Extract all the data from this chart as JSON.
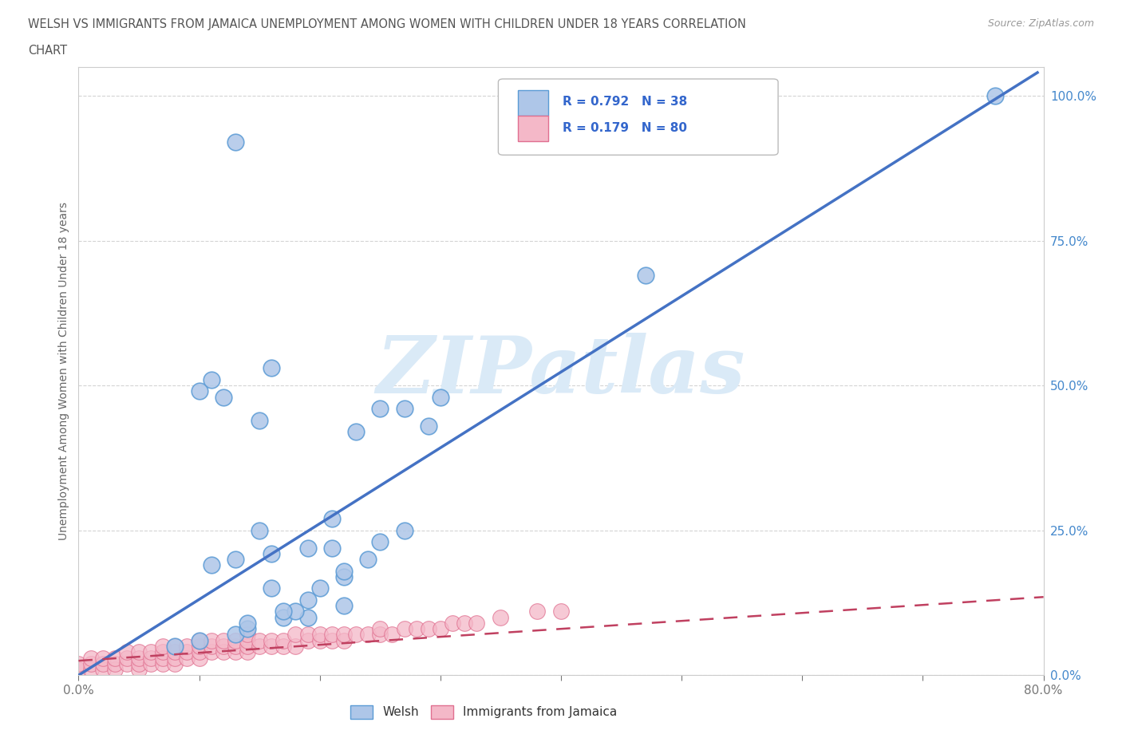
{
  "title_line1": "WELSH VS IMMIGRANTS FROM JAMAICA UNEMPLOYMENT AMONG WOMEN WITH CHILDREN UNDER 18 YEARS CORRELATION",
  "title_line2": "CHART",
  "source": "Source: ZipAtlas.com",
  "ylabel": "Unemployment Among Women with Children Under 18 years",
  "xlim": [
    0.0,
    0.8
  ],
  "ylim": [
    0.0,
    1.05
  ],
  "welsh_color": "#aec6e8",
  "welsh_edge_color": "#5b9bd5",
  "jamaica_color": "#f4b8c8",
  "jamaica_edge_color": "#e07090",
  "trendline_welsh_color": "#4472c4",
  "trendline_jamaica_color": "#c04060",
  "watermark": "ZIPatlas",
  "watermark_color": "#daeaf7",
  "grid_color": "#d0d0d0",
  "background_color": "#ffffff",
  "axis_color": "#cccccc",
  "tick_color": "#777777",
  "title_color": "#555555",
  "label_color": "#666666",
  "legend_text_color": "#3366cc",
  "welsh_x": [
    0.13,
    0.1,
    0.14,
    0.19,
    0.17,
    0.22,
    0.18,
    0.14,
    0.22,
    0.2,
    0.16,
    0.22,
    0.24,
    0.11,
    0.13,
    0.16,
    0.19,
    0.21,
    0.25,
    0.27,
    0.1,
    0.12,
    0.15,
    0.25,
    0.29,
    0.27,
    0.23,
    0.3,
    0.11,
    0.16,
    0.76,
    0.47,
    0.13,
    0.21,
    0.08,
    0.19,
    0.15,
    0.17
  ],
  "welsh_y": [
    0.07,
    0.06,
    0.08,
    0.1,
    0.1,
    0.12,
    0.11,
    0.09,
    0.17,
    0.15,
    0.15,
    0.18,
    0.2,
    0.19,
    0.2,
    0.21,
    0.22,
    0.22,
    0.23,
    0.25,
    0.49,
    0.48,
    0.44,
    0.46,
    0.43,
    0.46,
    0.42,
    0.48,
    0.51,
    0.53,
    1.0,
    0.69,
    0.92,
    0.27,
    0.05,
    0.13,
    0.25,
    0.11
  ],
  "jamaica_x": [
    0.0,
    0.0,
    0.01,
    0.01,
    0.01,
    0.02,
    0.02,
    0.02,
    0.03,
    0.03,
    0.03,
    0.04,
    0.04,
    0.04,
    0.05,
    0.05,
    0.05,
    0.05,
    0.06,
    0.06,
    0.06,
    0.07,
    0.07,
    0.07,
    0.07,
    0.08,
    0.08,
    0.08,
    0.08,
    0.09,
    0.09,
    0.09,
    0.1,
    0.1,
    0.1,
    0.1,
    0.11,
    0.11,
    0.11,
    0.12,
    0.12,
    0.12,
    0.13,
    0.13,
    0.13,
    0.14,
    0.14,
    0.14,
    0.14,
    0.15,
    0.15,
    0.16,
    0.16,
    0.17,
    0.17,
    0.18,
    0.18,
    0.19,
    0.19,
    0.2,
    0.2,
    0.21,
    0.21,
    0.22,
    0.22,
    0.23,
    0.24,
    0.25,
    0.25,
    0.26,
    0.27,
    0.28,
    0.29,
    0.3,
    0.31,
    0.32,
    0.33,
    0.35,
    0.38,
    0.4
  ],
  "jamaica_y": [
    0.01,
    0.02,
    0.01,
    0.02,
    0.03,
    0.01,
    0.02,
    0.03,
    0.01,
    0.02,
    0.03,
    0.02,
    0.03,
    0.04,
    0.01,
    0.02,
    0.03,
    0.04,
    0.02,
    0.03,
    0.04,
    0.02,
    0.03,
    0.04,
    0.05,
    0.02,
    0.03,
    0.04,
    0.05,
    0.03,
    0.04,
    0.05,
    0.03,
    0.04,
    0.05,
    0.06,
    0.04,
    0.05,
    0.06,
    0.04,
    0.05,
    0.06,
    0.04,
    0.05,
    0.06,
    0.04,
    0.05,
    0.06,
    0.07,
    0.05,
    0.06,
    0.05,
    0.06,
    0.05,
    0.06,
    0.05,
    0.07,
    0.06,
    0.07,
    0.06,
    0.07,
    0.06,
    0.07,
    0.06,
    0.07,
    0.07,
    0.07,
    0.07,
    0.08,
    0.07,
    0.08,
    0.08,
    0.08,
    0.08,
    0.09,
    0.09,
    0.09,
    0.1,
    0.11,
    0.11
  ],
  "welsh_trend_x": [
    0.0,
    0.795
  ],
  "welsh_trend_y": [
    0.0,
    1.04
  ],
  "jamaica_trend_x": [
    0.0,
    0.8
  ],
  "jamaica_trend_y": [
    0.025,
    0.135
  ]
}
